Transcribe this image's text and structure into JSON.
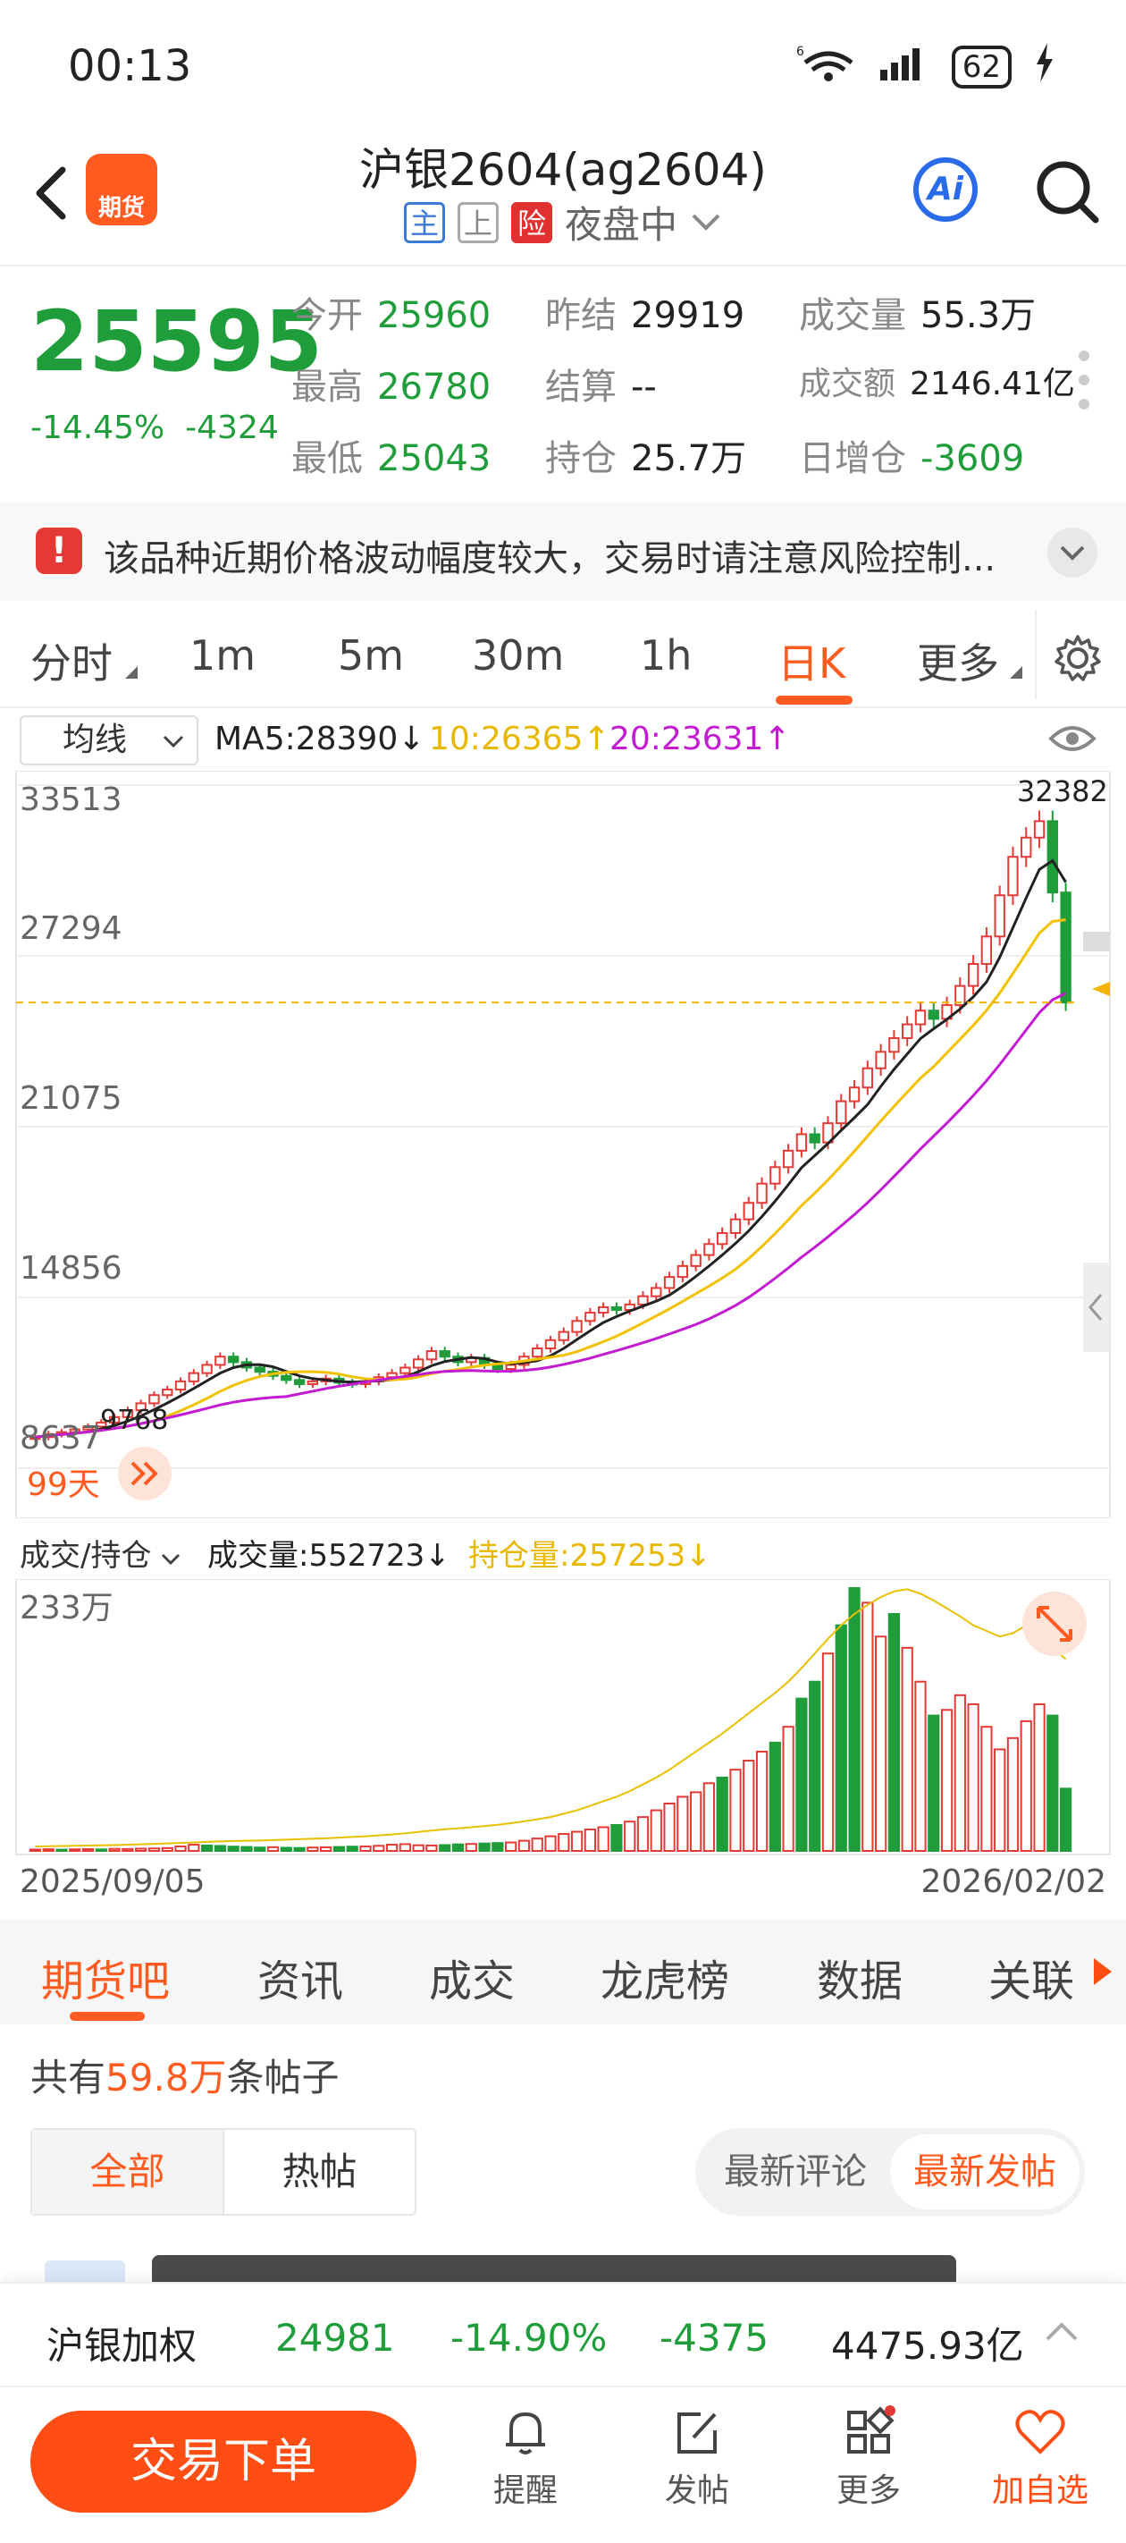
{
  "status": {
    "time": "00:13",
    "network": "6",
    "battery": "62"
  },
  "header": {
    "app_logo": "期货",
    "title": "沪银2604(ag2604)",
    "tags": [
      "主",
      "上",
      "险"
    ],
    "session": "夜盘中"
  },
  "quote": {
    "price": "25595",
    "change_pct": "-14.45%",
    "change": "-4324",
    "open_label": "今开",
    "open": "25960",
    "prev_label": "昨结",
    "prev": "29919",
    "vol_label": "成交量",
    "vol": "55.3万",
    "high_label": "最高",
    "high": "26780",
    "settle_label": "结算",
    "settle": "--",
    "amount_label": "成交额",
    "amount": "2146.41亿",
    "low_label": "最低",
    "low": "25043",
    "oi_label": "持仓",
    "oi": "25.7万",
    "oi_change_label": "日增仓",
    "oi_change": "-3609"
  },
  "notice": {
    "icon": "!",
    "text": "该品种近期价格波动幅度较大，交易时请注意风险控制..."
  },
  "tabs": [
    "分时",
    "1m",
    "5m",
    "30m",
    "1h",
    "日K",
    "更多"
  ],
  "ma": {
    "select": "均线",
    "ma5": "MA5:28390↓",
    "ma10": "10:26365↑",
    "ma20": "20:23631↑"
  },
  "chart_data": [
    {
      "type": "candlestick",
      "y_ticks": [
        "33513",
        "27294",
        "21075",
        "14856",
        "8637"
      ],
      "ylim": [
        8637,
        33513
      ],
      "max_label": "32382",
      "min_label": "9768",
      "days_label": "99天",
      "current_price_line": 25595,
      "colors": {
        "up": "#e53935",
        "down": "#1f9d3a",
        "ma5": "#222222",
        "ma10": "#f2c200",
        "ma20": "#c21bd1"
      },
      "close": [
        9768,
        9880,
        9950,
        10050,
        10150,
        10300,
        10500,
        10750,
        11000,
        11300,
        11500,
        11800,
        12100,
        12400,
        12700,
        12500,
        12300,
        12150,
        12000,
        11850,
        11700,
        11800,
        11900,
        11750,
        11700,
        11800,
        11950,
        12100,
        12300,
        12600,
        12900,
        12700,
        12500,
        12650,
        12400,
        12250,
        12400,
        12700,
        13000,
        13300,
        13600,
        14000,
        14300,
        14500,
        14400,
        14600,
        14900,
        15200,
        15600,
        16000,
        16400,
        16800,
        17200,
        17700,
        18300,
        19000,
        19600,
        20200,
        20800,
        20500,
        21200,
        22000,
        22500,
        23200,
        23800,
        24300,
        24800,
        25300,
        25000,
        25500,
        26200,
        27000,
        28000,
        29500,
        30900,
        31600,
        32200,
        29600,
        25595
      ]
    },
    {
      "type": "bar",
      "title": "成交/持仓",
      "volume_label": "成交量:552723↓",
      "oi_label": "持仓量:257253↓",
      "y_max_label": "233万",
      "x_start": "2025/09/05",
      "x_end": "2026/02/02",
      "colors": {
        "up": "#e53935",
        "down": "#1f9d3a",
        "oi": "#e8c000"
      },
      "volume": [
        12,
        15,
        11,
        14,
        16,
        13,
        18,
        17,
        20,
        22,
        25,
        40,
        55,
        48,
        44,
        38,
        35,
        30,
        33,
        28,
        26,
        30,
        32,
        35,
        38,
        40,
        45,
        55,
        60,
        50,
        48,
        52,
        58,
        62,
        66,
        70,
        75,
        90,
        110,
        130,
        150,
        170,
        190,
        210,
        230,
        260,
        300,
        360,
        420,
        480,
        520,
        600,
        650,
        720,
        800,
        880,
        960,
        1100,
        1350,
        1500,
        1750,
        2000,
        2330,
        2200,
        1900,
        2100,
        1800,
        1500,
        1200,
        1250,
        1380,
        1300,
        1100,
        900,
        1000,
        1150,
        1300,
        1200,
        552
      ],
      "volume_up": [
        1,
        1,
        0,
        1,
        1,
        0,
        1,
        1,
        1,
        1,
        1,
        1,
        1,
        0,
        0,
        0,
        0,
        0,
        1,
        0,
        0,
        1,
        1,
        0,
        0,
        1,
        1,
        1,
        1,
        1,
        1,
        0,
        0,
        1,
        0,
        0,
        1,
        1,
        1,
        1,
        1,
        1,
        1,
        1,
        0,
        1,
        1,
        1,
        1,
        1,
        1,
        1,
        0,
        1,
        1,
        1,
        0,
        1,
        0,
        0,
        1,
        0,
        0,
        1,
        1,
        0,
        1,
        1,
        0,
        1,
        1,
        1,
        1,
        1,
        1,
        1,
        1,
        0,
        0
      ],
      "open_interest": [
        40,
        42,
        44,
        46,
        48,
        50,
        52,
        55,
        58,
        62,
        66,
        70,
        75,
        80,
        84,
        88,
        90,
        92,
        96,
        100,
        104,
        108,
        112,
        118,
        124,
        130,
        138,
        146,
        156,
        168,
        180,
        192,
        200,
        210,
        220,
        232,
        246,
        262,
        280,
        300,
        330,
        360,
        400,
        440,
        480,
        530,
        590,
        650,
        720,
        800,
        880,
        960,
        1040,
        1130,
        1220,
        1310,
        1400,
        1500,
        1620,
        1750,
        1880,
        2000,
        2100,
        2180,
        2250,
        2300,
        2320,
        2280,
        2220,
        2150,
        2080,
        2000,
        1950,
        1900,
        1930,
        2000,
        1900,
        1800,
        1700
      ]
    }
  ],
  "section_tabs": [
    "期货吧",
    "资讯",
    "成交",
    "龙虎榜",
    "数据",
    "关联"
  ],
  "posts": {
    "prefix": "共有",
    "count": "59.8万",
    "suffix": "条帖子",
    "filters": [
      "全部",
      "热帖"
    ],
    "sorts": [
      "最新评论",
      "最新发帖"
    ]
  },
  "index_bar": {
    "name": "沪银加权",
    "price": "24981",
    "pct": "-14.90%",
    "change": "-4375",
    "amount": "4475.93亿"
  },
  "bottom_nav": {
    "trade": "交易下单",
    "items": [
      "提醒",
      "发帖",
      "更多",
      "加自选"
    ]
  }
}
